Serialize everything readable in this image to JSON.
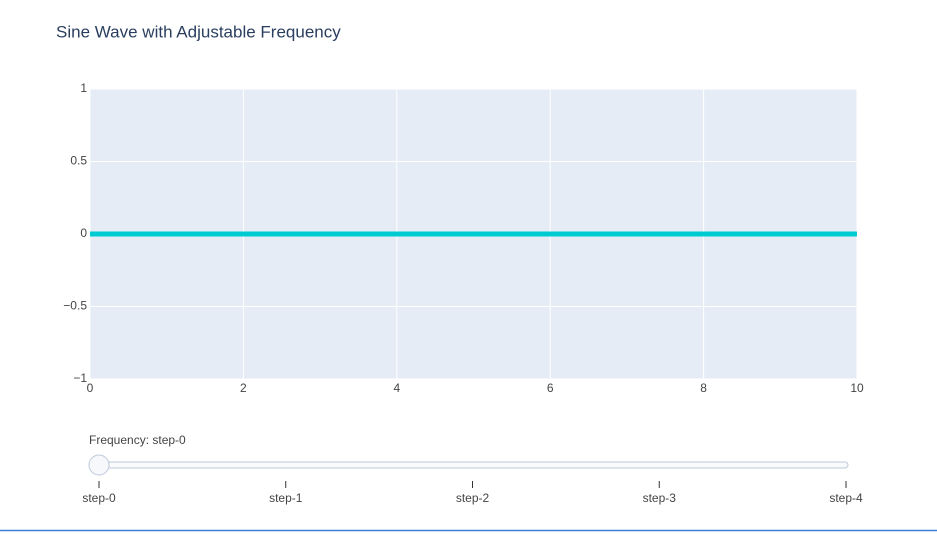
{
  "chart_data": {
    "type": "line",
    "title": "Sine Wave with Adjustable Frequency",
    "x": [
      0,
      2,
      4,
      6,
      8,
      10
    ],
    "series": [
      {
        "color": "#00cbd3",
        "values": [
          0,
          0,
          0,
          0,
          0,
          0
        ]
      }
    ],
    "xlim": [
      0,
      10
    ],
    "xticks": [
      0,
      2,
      4,
      6,
      8,
      10
    ],
    "ylim": [
      -1,
      1
    ],
    "yticks": [
      {
        "value": -1,
        "label": "−1"
      },
      {
        "value": -0.5,
        "label": "−0.5"
      },
      0,
      0.5,
      1
    ],
    "grid": true,
    "slider_label": "Frequency: step-0",
    "slider_steps": [
      "step-0",
      "step-1",
      "step-2",
      "step-3",
      "step-4"
    ],
    "slider_active": 0
  }
}
